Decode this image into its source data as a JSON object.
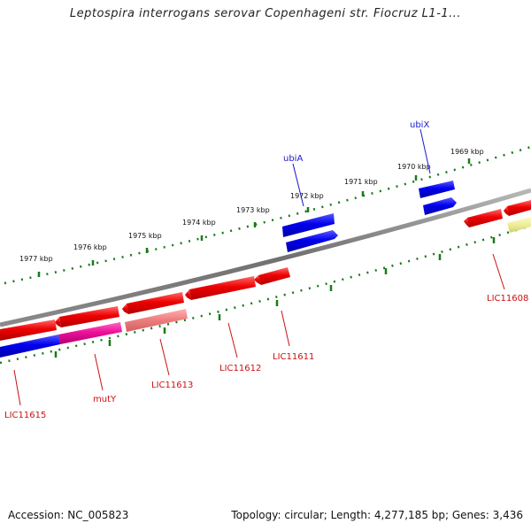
{
  "title": "Leptospira interrogans serovar Copenhageni str. Fiocruz L1-1...",
  "footer": {
    "accession": "Accession: NC_005823",
    "summary": "Topology: circular; Length: 4,277,185 bp; Genes: 3,436"
  },
  "colors": {
    "backbone": "#7a7a7a",
    "tick": "#1a7a1a",
    "forward_label": "#1a1acc",
    "reverse_label": "#cc1111",
    "red_gene": "#ee0000",
    "blue_gene": "#0000ee",
    "magenta_gene": "#ee1199",
    "pink_gene": "#f08080",
    "yellow_gene": "#eeee99"
  },
  "kbp_labels": [
    "1977 kbp",
    "1976 kbp",
    "1975 kbp",
    "1974 kbp",
    "1973 kbp",
    "1972 kbp",
    "1971 kbp",
    "1970 kbp",
    "1969 kbp"
  ],
  "genes_outer": [
    {
      "label": "ubiA",
      "color": "blue_gene"
    },
    {
      "label": "ubiX",
      "color": "blue_gene"
    }
  ],
  "genes_inner": [
    {
      "label": "LIC11615"
    },
    {
      "label": "mutY"
    },
    {
      "label": "LIC11613"
    },
    {
      "label": "LIC11612"
    },
    {
      "label": "LIC11611"
    },
    {
      "label": "LIC11608"
    }
  ]
}
